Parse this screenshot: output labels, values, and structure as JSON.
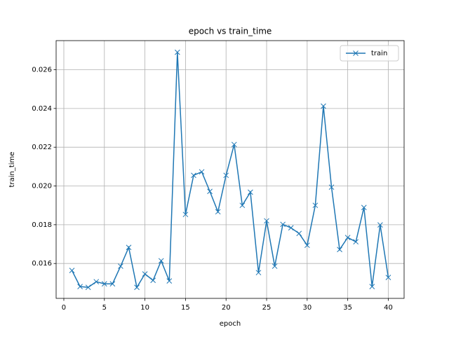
{
  "chart_data": {
    "type": "line",
    "title": "epoch vs train_time",
    "xlabel": "epoch",
    "ylabel": "train_time",
    "x": [
      1,
      2,
      3,
      4,
      5,
      6,
      7,
      8,
      9,
      10,
      11,
      12,
      13,
      14,
      15,
      16,
      17,
      18,
      19,
      20,
      21,
      22,
      23,
      24,
      25,
      26,
      27,
      28,
      29,
      30,
      31,
      32,
      33,
      34,
      35,
      36,
      37,
      38,
      39,
      40
    ],
    "series": [
      {
        "name": "train",
        "color": "#1f77b4",
        "marker": "x",
        "values": [
          0.01564,
          0.01481,
          0.01477,
          0.01506,
          0.01495,
          0.01495,
          0.01586,
          0.01683,
          0.01477,
          0.01546,
          0.01513,
          0.01614,
          0.0151,
          0.0269,
          0.01853,
          0.02055,
          0.02073,
          0.01972,
          0.01867,
          0.02055,
          0.02214,
          0.019,
          0.01968,
          0.01553,
          0.0182,
          0.01586,
          0.01802,
          0.01784,
          0.01755,
          0.01694,
          0.019,
          0.02412,
          0.01994,
          0.01672,
          0.01734,
          0.01712,
          0.01889,
          0.01481,
          0.01799,
          0.01528
        ]
      }
    ],
    "xlim": [
      -0.95,
      41.95
    ],
    "ylim": [
      0.0142,
      0.0275
    ],
    "xticks": [
      0,
      5,
      10,
      15,
      20,
      25,
      30,
      35,
      40
    ],
    "yticks": [
      0.016,
      0.018,
      {
        "value": 0.02,
        "label": "0.020"
      },
      0.022,
      0.024,
      0.026
    ],
    "grid": true,
    "legend": "upper right"
  }
}
